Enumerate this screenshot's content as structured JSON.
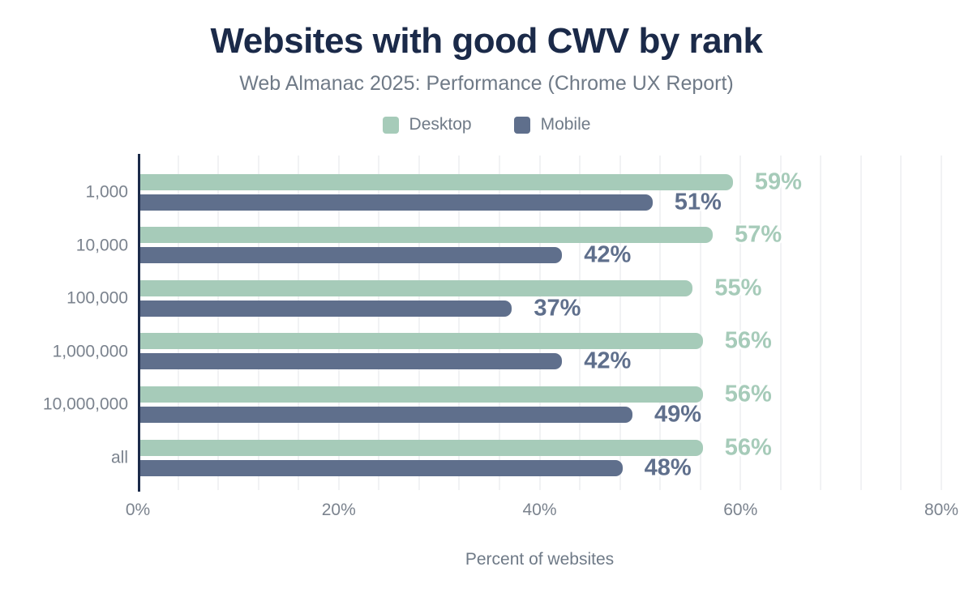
{
  "chart_data": {
    "type": "bar",
    "orientation": "horizontal",
    "title": "Websites with good CWV by rank",
    "subtitle": "Web Almanac 2025: Performance (Chrome UX Report)",
    "xlabel": "Percent of websites",
    "categories": [
      "1,000",
      "10,000",
      "100,000",
      "1,000,000",
      "10,000,000",
      "all"
    ],
    "series": [
      {
        "name": "Desktop",
        "color": "#a6cbb9",
        "values": [
          59,
          57,
          55,
          56,
          56,
          56
        ]
      },
      {
        "name": "Mobile",
        "color": "#5f6f8c",
        "values": [
          51,
          42,
          37,
          42,
          49,
          48
        ]
      }
    ],
    "value_suffix": "%",
    "xlim": [
      0,
      80
    ],
    "x_ticks": [
      0,
      20,
      40,
      60,
      80
    ],
    "x_tick_labels": [
      "0%",
      "20%",
      "40%",
      "60%",
      "80%"
    ],
    "grid": {
      "show": true,
      "minor_step": 4
    },
    "legend_position": "top"
  },
  "style": {
    "background": "#ffffff",
    "title_color": "#1b2a49",
    "subtitle_color": "#6f7a87",
    "legend_text_color": "#6f7a87",
    "axis_text_color": "#7b838e",
    "axis_line_color": "#1b2a49",
    "gridline_color": "#f1f2f4"
  }
}
